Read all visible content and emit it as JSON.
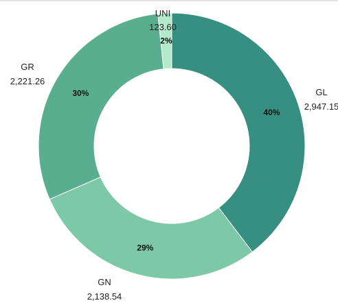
{
  "chart_data": {
    "type": "pie",
    "donut": true,
    "title": "",
    "slices": [
      {
        "label": "GL",
        "value_label": "2,947.15",
        "value": 2947.15,
        "percent_label": "40%",
        "color": "#368f80"
      },
      {
        "label": "GN",
        "value_label": "2,138.54",
        "value": 2138.54,
        "percent_label": "29%",
        "color": "#7dc9a7"
      },
      {
        "label": "GR",
        "value_label": "2,221.26",
        "value": 2221.26,
        "percent_label": "30%",
        "color": "#5aae90"
      },
      {
        "label": "UNI",
        "value_label": "123.60",
        "value": 123.6,
        "percent_label": "2%",
        "color": "#b4e9c9"
      }
    ],
    "start": "12 o'clock",
    "direction": "clockwise",
    "legend": "none"
  }
}
